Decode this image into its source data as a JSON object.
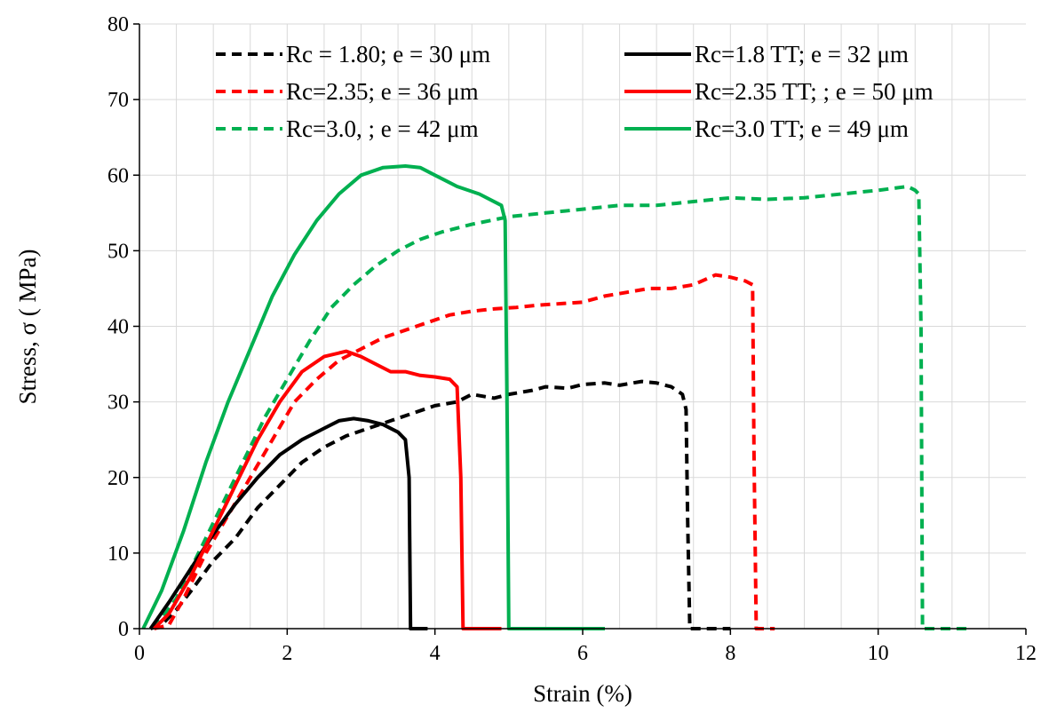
{
  "chart_data": {
    "type": "line",
    "title": "",
    "xlabel": "Strain (%)",
    "ylabel": "Stress, σ ( MPa)",
    "xlim": [
      0,
      12
    ],
    "ylim": [
      0,
      80
    ],
    "xticks": [
      "0",
      "2",
      "4",
      "6",
      "8",
      "10",
      "12"
    ],
    "yticks": [
      "0",
      "10",
      "20",
      "30",
      "40",
      "50",
      "60",
      "70",
      "80"
    ],
    "grid": true,
    "legend_position": "top",
    "series": [
      {
        "name": "Rc = 1.80; e = 30 μm",
        "color": "#000000",
        "dash": true,
        "x": [
          0.15,
          0.3,
          0.5,
          0.7,
          1.0,
          1.3,
          1.6,
          1.9,
          2.2,
          2.5,
          2.8,
          3.1,
          3.4,
          3.7,
          4.0,
          4.3,
          4.5,
          4.8,
          5.0,
          5.3,
          5.5,
          5.8,
          6.0,
          6.3,
          6.5,
          6.8,
          7.0,
          7.2,
          7.35,
          7.4,
          7.42,
          7.45,
          7.5,
          7.8,
          8.0
        ],
        "y": [
          0,
          0.5,
          2.5,
          5,
          9,
          12,
          16,
          19,
          22,
          24,
          25.5,
          26.5,
          27.5,
          28.5,
          29.5,
          30,
          31,
          30.5,
          31,
          31.5,
          32,
          31.8,
          32.3,
          32.5,
          32.2,
          32.7,
          32.5,
          32,
          31,
          29,
          15,
          0,
          0,
          0,
          0
        ]
      },
      {
        "name": "Rc=2.35; e = 36 μm",
        "color": "#ff0000",
        "dash": true,
        "x": [
          0.2,
          0.4,
          0.6,
          0.9,
          1.2,
          1.5,
          1.8,
          2.1,
          2.4,
          2.7,
          3.0,
          3.3,
          3.6,
          3.9,
          4.2,
          4.5,
          4.8,
          5.1,
          5.4,
          5.7,
          6.0,
          6.3,
          6.6,
          6.9,
          7.2,
          7.5,
          7.8,
          8.0,
          8.2,
          8.3,
          8.32,
          8.35,
          8.6
        ],
        "y": [
          0,
          0.5,
          4,
          10,
          15,
          20,
          25,
          30,
          33,
          35.5,
          37,
          38.5,
          39.5,
          40.5,
          41.5,
          42,
          42.3,
          42.5,
          42.8,
          43,
          43.2,
          44,
          44.5,
          45,
          45,
          45.5,
          46.8,
          46.5,
          46,
          45.5,
          23,
          0,
          0
        ]
      },
      {
        "name": "Rc=3.0, ; e = 42 μm",
        "color": "#00b050",
        "dash": true,
        "x": [
          0.2,
          0.5,
          0.8,
          1.1,
          1.4,
          1.7,
          2.0,
          2.3,
          2.6,
          2.9,
          3.2,
          3.5,
          3.8,
          4.1,
          4.5,
          5.0,
          5.5,
          6.0,
          6.5,
          7.0,
          7.5,
          8.0,
          8.5,
          9.0,
          9.5,
          10.0,
          10.4,
          10.5,
          10.55,
          10.58,
          10.6,
          11.2
        ],
        "y": [
          0,
          4,
          10,
          16,
          22,
          28,
          33,
          38,
          42.5,
          45.5,
          48,
          50,
          51.5,
          52.5,
          53.5,
          54.5,
          55,
          55.5,
          56,
          56,
          56.5,
          57,
          56.8,
          57,
          57.5,
          58,
          58.5,
          58,
          57.5,
          40,
          0,
          0
        ]
      },
      {
        "name": "Rc=1.8 TT; e = 32 μm",
        "color": "#000000",
        "dash": false,
        "x": [
          0.15,
          0.4,
          0.7,
          1.0,
          1.3,
          1.6,
          1.9,
          2.2,
          2.5,
          2.7,
          2.9,
          3.1,
          3.3,
          3.5,
          3.6,
          3.65,
          3.67,
          3.7,
          3.9
        ],
        "y": [
          0,
          3.5,
          8,
          12.5,
          16.5,
          20,
          23,
          25,
          26.5,
          27.5,
          27.8,
          27.5,
          27,
          26,
          25,
          20,
          0,
          0,
          0
        ]
      },
      {
        "name": "Rc=2.35 TT; ; e = 50 μm",
        "color": "#ff0000",
        "dash": false,
        "x": [
          0.2,
          0.4,
          0.7,
          1.0,
          1.3,
          1.6,
          1.9,
          2.2,
          2.5,
          2.8,
          3.0,
          3.2,
          3.4,
          3.6,
          3.8,
          4.0,
          4.2,
          4.3,
          4.35,
          4.38,
          4.4,
          4.9
        ],
        "y": [
          0,
          2,
          7,
          13,
          19,
          25,
          30,
          34,
          36,
          36.7,
          36,
          35,
          34,
          34,
          33.5,
          33.3,
          33,
          32,
          20,
          0,
          0,
          0
        ]
      },
      {
        "name": "Rc=3.0 TT; e = 49 μm",
        "color": "#00b050",
        "dash": false,
        "x": [
          0.05,
          0.3,
          0.6,
          0.9,
          1.2,
          1.5,
          1.8,
          2.1,
          2.4,
          2.7,
          3.0,
          3.3,
          3.6,
          3.8,
          4.0,
          4.3,
          4.6,
          4.9,
          4.95,
          4.98,
          5.0,
          6.3
        ],
        "y": [
          0,
          5,
          13,
          22,
          30,
          37,
          44,
          49.5,
          54,
          57.5,
          60,
          61,
          61.2,
          61,
          60,
          58.5,
          57.5,
          56,
          54,
          25,
          0,
          0
        ]
      }
    ]
  }
}
